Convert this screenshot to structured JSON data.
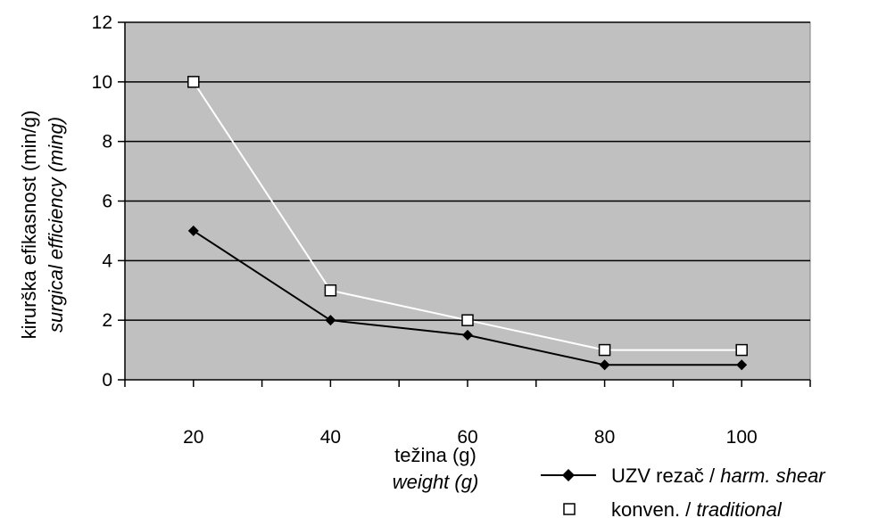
{
  "chart_data": {
    "type": "line",
    "categories": [
      "20",
      "40",
      "60",
      "80",
      "100"
    ],
    "x": [
      20,
      40,
      60,
      80,
      100
    ],
    "series": [
      {
        "name": "UZV rezač / ",
        "name_italic": "harm. shear",
        "values": [
          5,
          2,
          1.5,
          0.5,
          0.5
        ],
        "color": "#000000",
        "marker": "diamond"
      },
      {
        "name": "konven. / ",
        "name_italic": "traditional",
        "values": [
          10,
          3,
          2,
          1,
          1
        ],
        "color": "#ffffff",
        "marker": "square"
      }
    ],
    "ylabel": "kirurška efikasnost (min/g)",
    "ylabel_italic": "surgical efficiency (ming)",
    "xlabel": "težina (g)",
    "xlabel_italic": "weight (g)",
    "ylim": [
      0,
      12
    ],
    "yticks": [
      0,
      2,
      4,
      6,
      8,
      10,
      12
    ],
    "grid": true,
    "plot_background": "#c0c0c0",
    "legend_position": "bottom-right"
  }
}
